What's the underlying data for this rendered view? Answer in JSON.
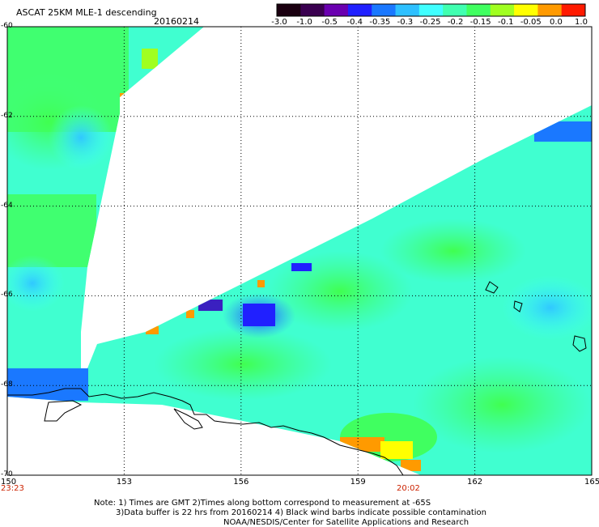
{
  "header": {
    "product": "ASCAT 25KM MLE-1 descending",
    "date": "20160214"
  },
  "colorbar": {
    "labels": [
      "-3.0",
      "-1.0",
      "-0.5",
      "-0.4",
      "-0.35",
      "-0.3",
      "-0.25",
      "-0.2",
      "-0.15",
      "-0.1",
      "-0.05",
      "0.0",
      "1.0"
    ],
    "colors": [
      "#1a0010",
      "#3a0050",
      "#6a00b0",
      "#2020ff",
      "#1a78ff",
      "#2ec0ff",
      "#40ffff",
      "#40ffb0",
      "#40ff60",
      "#a0ff20",
      "#ffff00",
      "#ff9a00",
      "#ff1a00"
    ]
  },
  "map": {
    "lon_ticks": [
      "150",
      "153",
      "156",
      "159",
      "162",
      "165"
    ],
    "lat_ticks": [
      "-60",
      "-62",
      "-64",
      "-66",
      "-68",
      "-70"
    ],
    "lon_range": [
      150,
      165
    ],
    "lat_range": [
      -70,
      -60
    ],
    "time_left": "23:23",
    "time_right": "20:02"
  },
  "notes": {
    "line1": "Note: 1) Times are GMT 2)Times along bottom correspond to measurement at -65S",
    "line2": "3)Data buffer is 22 hrs from 20160214 4) Black wind barbs indicate possible contamination",
    "line3": "NOAA/NESDIS/Center for Satellite Applications and Research"
  }
}
